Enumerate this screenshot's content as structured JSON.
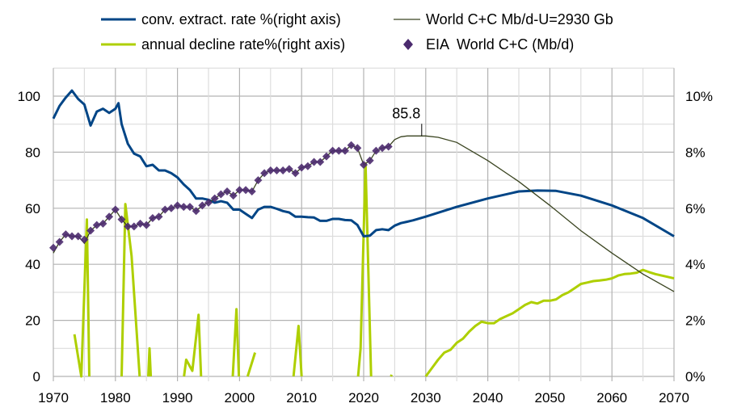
{
  "chart_data": {
    "type": "line",
    "title": "",
    "xlabel": "",
    "ylabel": "",
    "xlim": [
      1970,
      2070
    ],
    "ylim": [
      0,
      110
    ],
    "y2lim": [
      0,
      11
    ],
    "grid": true,
    "legend_position": "top",
    "x_ticks": [
      "1970",
      "1980",
      "1990",
      "2000",
      "2010",
      "2020",
      "2030",
      "2040",
      "2050",
      "2060",
      "2070"
    ],
    "y_ticks": [
      "0",
      "20",
      "40",
      "60",
      "80",
      "100"
    ],
    "y2_ticks": [
      "0%",
      "2%",
      "4%",
      "6%",
      "8%",
      "10%"
    ],
    "colors": {
      "blue": "#004586",
      "green": "#aecf00",
      "olive": "#3a4420",
      "purple": "#4b2a6e"
    },
    "annotation": {
      "label": "85.8",
      "x": 2030,
      "y": 85.8
    },
    "series": [
      {
        "name": "conv. extract. rate %(right axis)",
        "axis": "right",
        "points": [
          [
            1970,
            9.2
          ],
          [
            1971,
            9.65
          ],
          [
            1972,
            9.95
          ],
          [
            1973,
            10.2
          ],
          [
            1974,
            9.9
          ],
          [
            1975,
            9.7
          ],
          [
            1976,
            8.95
          ],
          [
            1977,
            9.45
          ],
          [
            1978,
            9.55
          ],
          [
            1979,
            9.4
          ],
          [
            1980,
            9.55
          ],
          [
            1980.5,
            9.75
          ],
          [
            1981,
            9.0
          ],
          [
            1982,
            8.3
          ],
          [
            1983,
            7.95
          ],
          [
            1984,
            7.85
          ],
          [
            1985,
            7.5
          ],
          [
            1986,
            7.55
          ],
          [
            1987,
            7.35
          ],
          [
            1988,
            7.35
          ],
          [
            1989,
            7.25
          ],
          [
            1990,
            7.1
          ],
          [
            1991,
            6.85
          ],
          [
            1992,
            6.65
          ],
          [
            1993,
            6.35
          ],
          [
            1994,
            6.35
          ],
          [
            1995,
            6.3
          ],
          [
            1996,
            6.2
          ],
          [
            1997,
            6.25
          ],
          [
            1998,
            6.2
          ],
          [
            1999,
            5.95
          ],
          [
            2000,
            5.95
          ],
          [
            2001,
            5.8
          ],
          [
            2002,
            5.65
          ],
          [
            2003,
            5.95
          ],
          [
            2004,
            6.05
          ],
          [
            2005,
            6.05
          ],
          [
            2006,
            5.98
          ],
          [
            2007,
            5.9
          ],
          [
            2008,
            5.85
          ],
          [
            2009,
            5.7
          ],
          [
            2010,
            5.7
          ],
          [
            2011,
            5.68
          ],
          [
            2012,
            5.67
          ],
          [
            2013,
            5.55
          ],
          [
            2014,
            5.55
          ],
          [
            2015,
            5.62
          ],
          [
            2016,
            5.62
          ],
          [
            2017,
            5.58
          ],
          [
            2018,
            5.57
          ],
          [
            2019,
            5.4
          ],
          [
            2020,
            5.0
          ],
          [
            2021,
            5.02
          ],
          [
            2022,
            5.22
          ],
          [
            2023,
            5.25
          ],
          [
            2024,
            5.22
          ],
          [
            2025,
            5.38
          ],
          [
            2026,
            5.47
          ],
          [
            2027,
            5.52
          ],
          [
            2028,
            5.57
          ],
          [
            2030,
            5.7
          ],
          [
            2035,
            6.05
          ],
          [
            2040,
            6.35
          ],
          [
            2045,
            6.6
          ],
          [
            2048,
            6.63
          ],
          [
            2051,
            6.62
          ],
          [
            2055,
            6.45
          ],
          [
            2060,
            6.1
          ],
          [
            2065,
            5.65
          ],
          [
            2070,
            5.0
          ]
        ]
      },
      {
        "name": "World C+C Mb/d-U=2930 Gb",
        "axis": "left",
        "points": [
          [
            1970,
            44
          ],
          [
            1971,
            48
          ],
          [
            1972,
            50.7
          ],
          [
            1973,
            50
          ],
          [
            1974,
            50
          ],
          [
            1975,
            47.5
          ],
          [
            1976,
            52
          ],
          [
            1977,
            54
          ],
          [
            1978,
            54.5
          ],
          [
            1979,
            57
          ],
          [
            1980,
            59.5
          ],
          [
            1981,
            56
          ],
          [
            1982,
            53.5
          ],
          [
            1983,
            53.5
          ],
          [
            1984,
            54.5
          ],
          [
            1985,
            54
          ],
          [
            1986,
            56.5
          ],
          [
            1987,
            57
          ],
          [
            1988,
            59.5
          ],
          [
            1989,
            60
          ],
          [
            1990,
            61
          ],
          [
            1991,
            60.5
          ],
          [
            1992,
            60.5
          ],
          [
            1993,
            59
          ],
          [
            1994,
            61
          ],
          [
            1995,
            62
          ],
          [
            1996,
            63.5
          ],
          [
            1997,
            65
          ],
          [
            1998,
            66
          ],
          [
            1999,
            64.5
          ],
          [
            2000,
            66.5
          ],
          [
            2001,
            66.5
          ],
          [
            2002,
            66
          ],
          [
            2003,
            70
          ],
          [
            2004,
            72.5
          ],
          [
            2005,
            73.5
          ],
          [
            2006,
            73.5
          ],
          [
            2007,
            73.5
          ],
          [
            2008,
            74
          ],
          [
            2009,
            72.5
          ],
          [
            2010,
            74.5
          ],
          [
            2011,
            75
          ],
          [
            2012,
            76.5
          ],
          [
            2013,
            76.5
          ],
          [
            2014,
            78.5
          ],
          [
            2015,
            80.5
          ],
          [
            2016,
            80.5
          ],
          [
            2017,
            80.5
          ],
          [
            2018,
            82.5
          ],
          [
            2019,
            81.5
          ],
          [
            2020,
            75.5
          ],
          [
            2021,
            77
          ],
          [
            2022,
            80.5
          ],
          [
            2023,
            81.5
          ],
          [
            2024,
            82
          ],
          [
            2025,
            84.5
          ],
          [
            2026,
            85.5
          ],
          [
            2027,
            85.8
          ],
          [
            2030,
            85.8
          ],
          [
            2032,
            85.3
          ],
          [
            2035,
            83.5
          ],
          [
            2040,
            77
          ],
          [
            2045,
            69.5
          ],
          [
            2050,
            61
          ],
          [
            2055,
            52
          ],
          [
            2060,
            44
          ],
          [
            2065,
            36.5
          ],
          [
            2070,
            30.3
          ]
        ]
      },
      {
        "name": "annual decline rate%(right axis)",
        "axis": "right",
        "segments": [
          [
            [
              1973.4,
              1.5
            ],
            [
              1974.5,
              0
            ],
            [
              1975.4,
              5.6
            ],
            [
              1975.8,
              0
            ]
          ],
          [
            [
              1981,
              0
            ],
            [
              1981.6,
              6.15
            ],
            [
              1982.6,
              4.3
            ],
            [
              1983.9,
              0
            ]
          ],
          [
            [
              1985.3,
              0
            ],
            [
              1985.5,
              1.0
            ],
            [
              1985.7,
              0
            ]
          ],
          [
            [
              1991.05,
              0
            ],
            [
              1991.4,
              0.6
            ],
            [
              1992.4,
              0.2
            ],
            [
              1993.4,
              2.2
            ],
            [
              1993.8,
              0
            ]
          ],
          [
            [
              1998.9,
              0
            ],
            [
              1999.5,
              2.4
            ],
            [
              1999.9,
              0
            ]
          ],
          [
            [
              2001.3,
              0
            ],
            [
              2002.5,
              0.85
            ]
          ],
          [
            [
              2008.7,
              0
            ],
            [
              2009.5,
              1.8
            ],
            [
              2010,
              0
            ]
          ],
          [
            [
              2019.1,
              0
            ],
            [
              2019.5,
              1.0
            ],
            [
              2020.3,
              7.6
            ],
            [
              2021.2,
              0
            ]
          ],
          [
            [
              2024.4,
              0
            ],
            [
              2024.5,
              0.06
            ]
          ],
          [
            [
              2030,
              0
            ],
            [
              2031,
              0.3
            ],
            [
              2032,
              0.6
            ],
            [
              2033,
              0.85
            ],
            [
              2034,
              0.95
            ],
            [
              2035,
              1.2
            ],
            [
              2036,
              1.35
            ],
            [
              2037,
              1.6
            ],
            [
              2038,
              1.8
            ],
            [
              2039,
              1.95
            ],
            [
              2040,
              1.9
            ],
            [
              2041,
              1.9
            ],
            [
              2042,
              2.05
            ],
            [
              2043,
              2.15
            ],
            [
              2044,
              2.25
            ],
            [
              2045,
              2.4
            ],
            [
              2046,
              2.55
            ],
            [
              2047,
              2.65
            ],
            [
              2048,
              2.6
            ],
            [
              2049,
              2.7
            ],
            [
              2050,
              2.7
            ],
            [
              2051,
              2.75
            ],
            [
              2052,
              2.9
            ],
            [
              2053,
              3.0
            ],
            [
              2054,
              3.15
            ],
            [
              2055,
              3.3
            ],
            [
              2056,
              3.35
            ],
            [
              2057,
              3.4
            ],
            [
              2058,
              3.42
            ],
            [
              2059,
              3.45
            ],
            [
              2060,
              3.5
            ],
            [
              2061,
              3.6
            ],
            [
              2062,
              3.65
            ],
            [
              2063,
              3.67
            ],
            [
              2064,
              3.7
            ],
            [
              2065,
              3.8
            ],
            [
              2066,
              3.72
            ],
            [
              2067,
              3.65
            ],
            [
              2068,
              3.6
            ],
            [
              2069,
              3.55
            ],
            [
              2070,
              3.5
            ]
          ]
        ]
      },
      {
        "name": "EIA  World C+C (Mb/d)",
        "axis": "left",
        "marker": "diamond",
        "points": [
          [
            1970,
            45.9
          ],
          [
            1971,
            48
          ],
          [
            1972,
            50.7
          ],
          [
            1973,
            50
          ],
          [
            1974,
            50
          ],
          [
            1975,
            48.8
          ],
          [
            1976,
            52
          ],
          [
            1977,
            54
          ],
          [
            1978,
            54.5
          ],
          [
            1979,
            57
          ],
          [
            1980,
            59.5
          ],
          [
            1981,
            56
          ],
          [
            1982,
            53.5
          ],
          [
            1983,
            53.5
          ],
          [
            1984,
            54.5
          ],
          [
            1985,
            54
          ],
          [
            1986,
            56.5
          ],
          [
            1987,
            57
          ],
          [
            1988,
            59.5
          ],
          [
            1989,
            60
          ],
          [
            1990,
            61
          ],
          [
            1991,
            60.5
          ],
          [
            1992,
            60.5
          ],
          [
            1993,
            59
          ],
          [
            1994,
            61
          ],
          [
            1995,
            62
          ],
          [
            1996,
            63.5
          ],
          [
            1997,
            65
          ],
          [
            1998,
            66
          ],
          [
            1999,
            64.5
          ],
          [
            2000,
            66.5
          ],
          [
            2001,
            66.5
          ],
          [
            2002,
            66
          ],
          [
            2003,
            70
          ],
          [
            2004,
            72.5
          ],
          [
            2005,
            73.5
          ],
          [
            2006,
            73.5
          ],
          [
            2007,
            73.5
          ],
          [
            2008,
            74
          ],
          [
            2009,
            72.5
          ],
          [
            2010,
            74.5
          ],
          [
            2011,
            75
          ],
          [
            2012,
            76.5
          ],
          [
            2013,
            76.5
          ],
          [
            2014,
            78.5
          ],
          [
            2015,
            80.5
          ],
          [
            2016,
            80.5
          ],
          [
            2017,
            80.5
          ],
          [
            2018,
            82.5
          ],
          [
            2019,
            81.5
          ],
          [
            2020,
            75.5
          ],
          [
            2021,
            77
          ],
          [
            2022,
            80.5
          ],
          [
            2023,
            81.5
          ],
          [
            2024,
            82
          ]
        ]
      }
    ]
  }
}
